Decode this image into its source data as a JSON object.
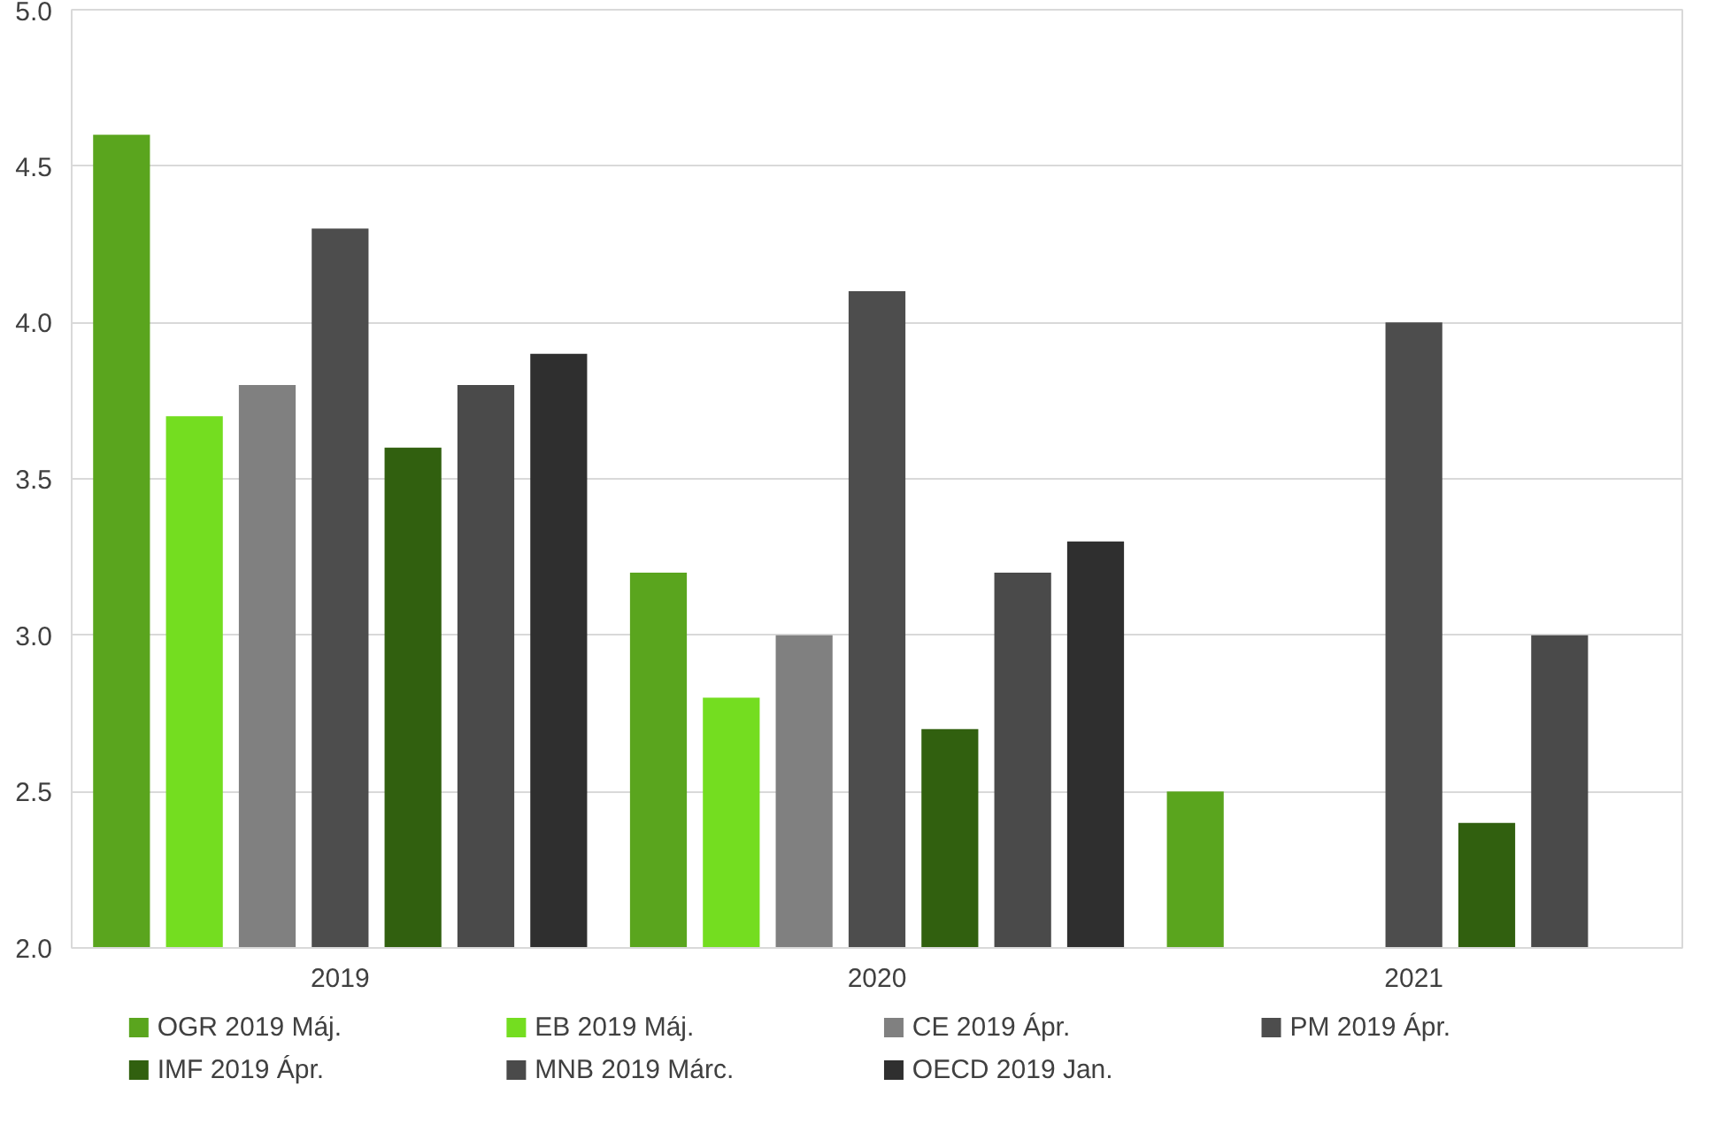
{
  "chart_data": {
    "type": "bar",
    "categories": [
      "2019",
      "2020",
      "2021"
    ],
    "series": [
      {
        "name": "OGR 2019 Máj.",
        "color": "#5aa51e",
        "values": [
          4.6,
          3.2,
          2.5
        ]
      },
      {
        "name": "EB 2019 Máj.",
        "color": "#74dd20",
        "values": [
          3.7,
          2.8,
          null
        ]
      },
      {
        "name": "CE 2019 Ápr.",
        "color": "#808080",
        "values": [
          3.8,
          3.0,
          null
        ]
      },
      {
        "name": "PM 2019 Ápr.",
        "color": "#4d4d4d",
        "values": [
          4.3,
          4.1,
          4.0
        ]
      },
      {
        "name": "IMF 2019 Ápr.",
        "color": "#31600f",
        "values": [
          3.6,
          2.7,
          2.4
        ]
      },
      {
        "name": "MNB 2019 Márc.",
        "color": "#4a4a4a",
        "values": [
          3.8,
          3.2,
          3.0
        ]
      },
      {
        "name": "OECD 2019 Jan.",
        "color": "#2f2f2f",
        "values": [
          3.9,
          3.3,
          null
        ]
      }
    ],
    "ylim": [
      2,
      5
    ],
    "yticks": [
      {
        "value": 2,
        "label": "2.0"
      },
      {
        "value": 2.5,
        "label": "2.5"
      },
      {
        "value": 3,
        "label": "3.0"
      },
      {
        "value": 3.5,
        "label": "3.5"
      },
      {
        "value": 4,
        "label": "4.0"
      },
      {
        "value": 4.5,
        "label": "4.5"
      },
      {
        "value": 5,
        "label": "5.0"
      }
    ],
    "grid": "y",
    "legend": "bottom"
  }
}
